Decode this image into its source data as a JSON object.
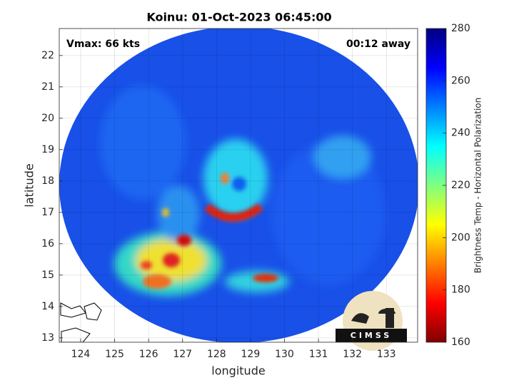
{
  "chart_data": {
    "type": "image",
    "title": "Koinu: 01-Oct-2023 06:45:00",
    "annotations": [
      "Vmax: 66 kts",
      "00:12 away"
    ],
    "x_label": "longitude",
    "y_label": "latitude",
    "xlim": [
      123.37,
      133.92
    ],
    "xticks": [
      124,
      125,
      126,
      127,
      128,
      129,
      130,
      131,
      132,
      133
    ],
    "ylim": [
      12.86,
      22.86
    ],
    "yticks": [
      13,
      14,
      15,
      16,
      17,
      18,
      19,
      20,
      21,
      22
    ],
    "grid": true,
    "colorbar": {
      "label": "Brightness Temp - Horizontal Polarization",
      "clim": [
        160,
        280
      ],
      "ticks": [
        160,
        180,
        200,
        220,
        240,
        260,
        280
      ]
    },
    "logo_text": "CIMSS"
  }
}
